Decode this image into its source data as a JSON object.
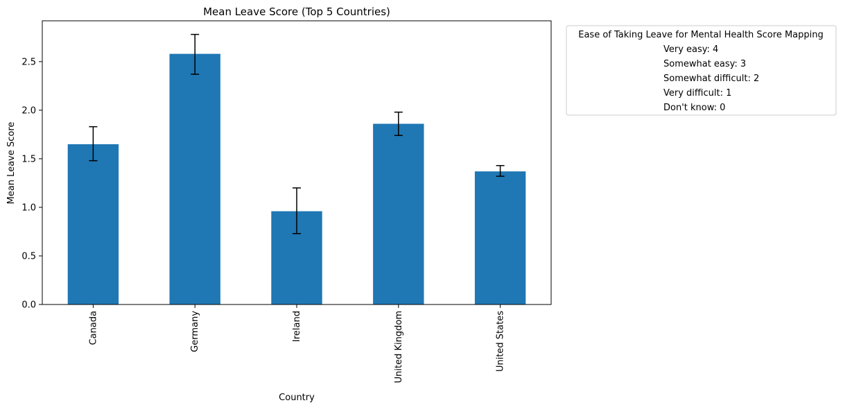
{
  "chart_data": {
    "type": "bar",
    "title": "Mean Leave Score (Top 5 Countries)",
    "xlabel": "Country",
    "ylabel": "Mean Leave Score",
    "categories": [
      "Canada",
      "Germany",
      "Ireland",
      "United Kingdom",
      "United States"
    ],
    "values": [
      1.65,
      2.58,
      0.96,
      1.86,
      1.37
    ],
    "error_low": [
      1.48,
      2.37,
      0.73,
      1.74,
      1.32
    ],
    "error_high": [
      1.83,
      2.78,
      1.2,
      1.98,
      1.43
    ],
    "ylim": [
      0,
      2.92
    ],
    "yticks": [
      "0.0",
      "0.5",
      "1.0",
      "1.5",
      "2.0",
      "2.5"
    ],
    "ytick_values": [
      0,
      0.5,
      1.0,
      1.5,
      2.0,
      2.5
    ],
    "grid": false,
    "bar_color": "#1f77b4",
    "error_color": "#000000",
    "legend": {
      "placement": "outside-top-right",
      "title": "Ease of Taking Leave for Mental Health Score Mapping",
      "entries": [
        "Very easy: 4",
        "Somewhat easy: 3",
        "Somewhat difficult: 2",
        "Very difficult: 1",
        "Don't know: 0"
      ]
    }
  }
}
